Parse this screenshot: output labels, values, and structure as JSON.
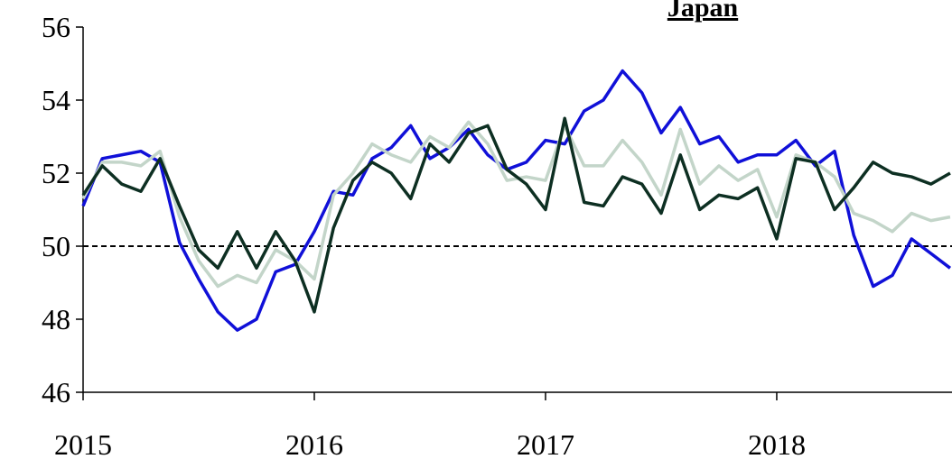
{
  "chart_data": {
    "type": "line",
    "title": "Japan",
    "x": [
      2015,
      2015.083,
      2015.167,
      2015.25,
      2015.333,
      2015.417,
      2015.5,
      2015.583,
      2015.667,
      2015.75,
      2015.833,
      2015.917,
      2016,
      2016.083,
      2016.167,
      2016.25,
      2016.333,
      2016.417,
      2016.5,
      2016.583,
      2016.667,
      2016.75,
      2016.833,
      2016.917,
      2017,
      2017.083,
      2017.167,
      2017.25,
      2017.333,
      2017.417,
      2017.5,
      2017.583,
      2017.667,
      2017.75,
      2017.833,
      2017.917,
      2018,
      2018.083,
      2018.167,
      2018.25,
      2018.333,
      2018.417,
      2018.5,
      2018.583,
      2018.667,
      2018.75
    ],
    "series": [
      {
        "color": "#1010d8",
        "values": [
          51.1,
          52.4,
          52.5,
          52.6,
          52.3,
          50.1,
          49.1,
          48.2,
          47.7,
          48.0,
          49.3,
          49.5,
          50.4,
          51.5,
          51.4,
          52.4,
          52.7,
          53.3,
          52.4,
          52.7,
          53.2,
          52.5,
          52.1,
          52.3,
          52.9,
          52.8,
          53.7,
          54.0,
          54.8,
          54.2,
          53.1,
          53.8,
          52.8,
          53.0,
          52.3,
          52.5,
          52.5,
          52.9,
          52.2,
          52.6,
          50.3,
          48.9,
          49.2,
          50.2,
          49.8,
          49.4
        ]
      },
      {
        "color": "#c3d5c9",
        "values": [
          51.3,
          52.3,
          52.3,
          52.2,
          52.6,
          50.8,
          49.6,
          48.9,
          49.2,
          49.0,
          49.9,
          49.6,
          49.1,
          51.4,
          52.0,
          52.8,
          52.5,
          52.3,
          53.0,
          52.7,
          53.4,
          52.8,
          51.8,
          51.9,
          51.8,
          53.3,
          52.2,
          52.2,
          52.9,
          52.3,
          51.4,
          53.2,
          51.7,
          52.2,
          51.8,
          52.1,
          50.8,
          52.5,
          52.3,
          51.9,
          50.9,
          50.7,
          50.4,
          50.9,
          50.7,
          50.8
        ]
      },
      {
        "color": "#0d2f22",
        "values": [
          51.4,
          52.2,
          51.7,
          51.5,
          52.4,
          51.1,
          49.9,
          49.4,
          50.4,
          49.4,
          50.4,
          49.6,
          48.2,
          50.5,
          51.8,
          52.3,
          52.0,
          51.3,
          52.8,
          52.3,
          53.1,
          53.3,
          52.1,
          51.7,
          51.0,
          53.5,
          51.2,
          51.1,
          51.9,
          51.7,
          50.9,
          52.5,
          51.0,
          51.4,
          51.3,
          51.6,
          50.2,
          52.4,
          52.3,
          51.0,
          51.6,
          52.3,
          52.0,
          51.9,
          51.7,
          52.0
        ]
      }
    ],
    "xlim": [
      2015,
      2018.758
    ],
    "xticks": [
      2015,
      2016,
      2017,
      2018
    ],
    "ylim": [
      46,
      56
    ],
    "yticks": [
      46,
      48,
      50,
      52,
      54,
      56
    ],
    "hline": 50,
    "grid": false
  }
}
